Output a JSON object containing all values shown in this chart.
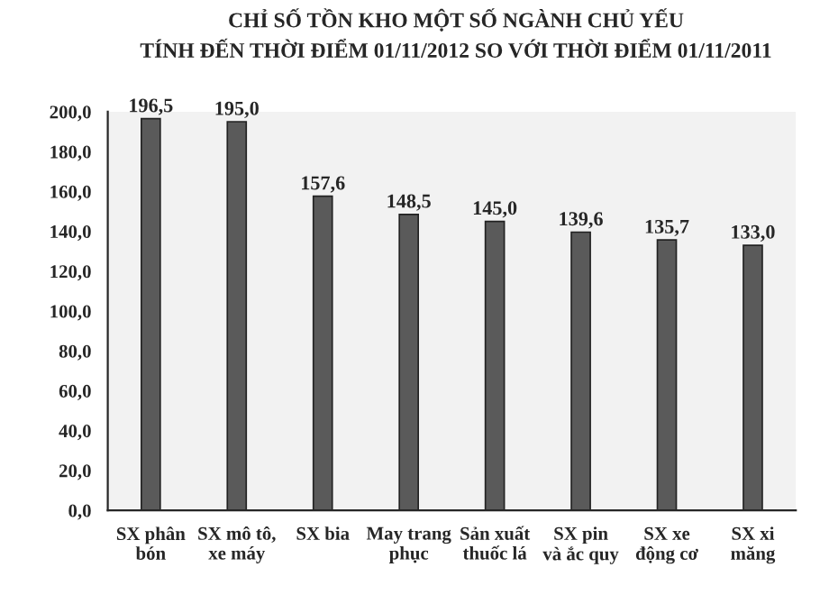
{
  "chart_data": {
    "type": "bar",
    "title": "CHỈ SỐ TỒN KHO MỘT SỐ NGÀNH CHỦ YẾU",
    "subtitle": "TÍNH ĐẾN THỜI ĐIỂM 01/11/2012 SO VỚI THỜI ĐIỂM 01/11/2011",
    "categories": [
      "SX phân\nbón",
      "SX mô tô,\nxe máy",
      "SX bia",
      "May trang\nphục",
      "Sản xuất\nthuốc lá",
      "SX pin\nvà ắc quy",
      "SX xe\nđộng cơ",
      "SX xi\nmăng"
    ],
    "values": [
      196.5,
      195.0,
      157.6,
      148.5,
      145.0,
      139.6,
      135.7,
      133.0
    ],
    "value_labels": [
      "196,5",
      "195,0",
      "157,6",
      "148,5",
      "145,0",
      "139,6",
      "135,7",
      "133,0"
    ],
    "color": "#5a5a5a",
    "ylim": [
      0,
      200
    ],
    "yticks": [
      {
        "value": 0,
        "label": "0,0"
      },
      {
        "value": 20,
        "label": "20,0"
      },
      {
        "value": 40,
        "label": "40,0"
      },
      {
        "value": 60,
        "label": "60,0"
      },
      {
        "value": 80,
        "label": "80,0"
      },
      {
        "value": 100,
        "label": "100,0"
      },
      {
        "value": 120,
        "label": "120,0"
      },
      {
        "value": 140,
        "label": "140,0"
      },
      {
        "value": 160,
        "label": "160,0"
      },
      {
        "value": 180,
        "label": "180,0"
      },
      {
        "value": 200,
        "label": "200,0"
      }
    ],
    "grid": false,
    "legend": false
  }
}
